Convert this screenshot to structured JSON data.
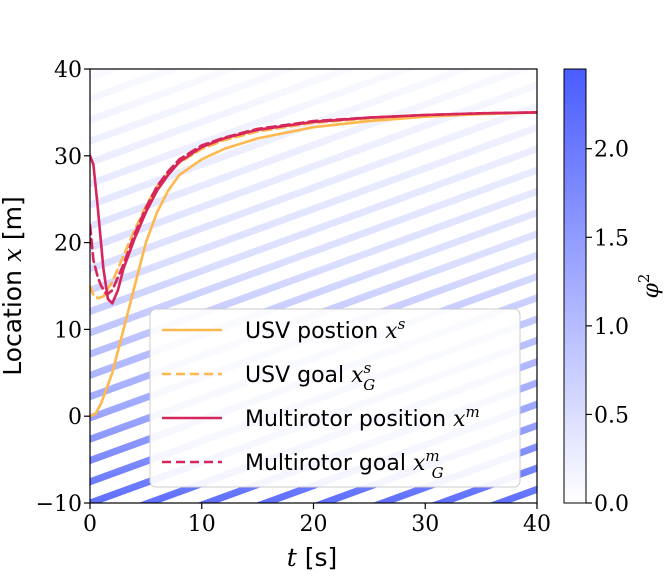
{
  "chart_data": {
    "type": "line",
    "title": "",
    "xlabel": {
      "math": "t",
      "text": " [s]"
    },
    "ylabel": {
      "text": "Location ",
      "math": "x",
      "unit": " [m]"
    },
    "xlim": [
      0,
      40
    ],
    "ylim": [
      -10,
      40
    ],
    "x_ticks": [
      0,
      10,
      20,
      30,
      40
    ],
    "x_tick_labels": [
      "0",
      "10",
      "20",
      "30",
      "40"
    ],
    "y_ticks": [
      -10,
      0,
      10,
      20,
      30,
      40
    ],
    "y_tick_labels": [
      "−10",
      "0",
      "10",
      "20",
      "30",
      "40"
    ],
    "grid": false,
    "legend_position": "lower-right",
    "background": "diagonal stripes colored by phi^2 value",
    "series": [
      {
        "name": "USV postion",
        "math": "x",
        "sup": "s",
        "sub": "",
        "color": "#ffb84d",
        "style": "solid",
        "x": [
          0,
          0.5,
          1,
          2,
          3,
          4,
          5,
          6,
          7,
          8,
          10,
          12,
          15,
          20,
          25,
          30,
          35,
          40
        ],
        "y": [
          0,
          0.3,
          1.5,
          5,
          10,
          15,
          20,
          23.5,
          26,
          27.8,
          29.6,
          30.8,
          32,
          33.3,
          34,
          34.5,
          34.8,
          35
        ]
      },
      {
        "name": "USV goal",
        "math": "x",
        "sup": "s",
        "sub": "G",
        "color": "#ffb84d",
        "style": "dashed",
        "x": [
          0,
          0.3,
          0.7,
          1.2,
          2,
          3,
          4,
          5,
          6,
          7,
          8,
          10,
          12,
          15,
          20,
          25,
          30,
          35,
          40
        ],
        "y": [
          15,
          14,
          13.6,
          13.8,
          15.5,
          18.5,
          21.5,
          24.2,
          26.5,
          28,
          29.2,
          30.8,
          31.8,
          32.8,
          33.8,
          34.3,
          34.6,
          34.8,
          35
        ]
      },
      {
        "name": "Multirotor position",
        "math": "x",
        "sup": "m",
        "sub": "",
        "color": "#d6265a",
        "style": "solid",
        "x": [
          0,
          0.3,
          0.7,
          1.2,
          1.6,
          2,
          2.5,
          3,
          4,
          5,
          6,
          7,
          8,
          10,
          12,
          15,
          20,
          25,
          30,
          35,
          40
        ],
        "y": [
          30,
          29,
          24,
          17,
          13.5,
          13,
          14.5,
          17,
          20.5,
          23.5,
          26,
          27.8,
          29.3,
          31,
          32,
          33,
          33.9,
          34.4,
          34.7,
          34.9,
          35
        ]
      },
      {
        "name": "Multirotor goal",
        "math": "x",
        "sup": "m",
        "sub": "G",
        "color": "#d6265a",
        "style": "dashed",
        "x": [
          0,
          0.3,
          0.7,
          1,
          1.5,
          2,
          3,
          4,
          5,
          6,
          7,
          8,
          10,
          12,
          15,
          20,
          25,
          30,
          35,
          40
        ],
        "y": [
          22,
          18,
          16,
          15,
          14,
          14.5,
          17.5,
          21,
          24,
          26.5,
          28.2,
          29.6,
          31.2,
          32.1,
          33.1,
          34,
          34.4,
          34.7,
          34.9,
          35
        ]
      }
    ],
    "colorbar": {
      "label_math": "φ",
      "label_sup": "2",
      "ticks": [
        0.0,
        0.5,
        1.0,
        1.5,
        2.0
      ],
      "tick_labels": [
        "0.0",
        "0.5",
        "1.0",
        "1.5",
        "2.0"
      ],
      "max": 2.45,
      "color_low": "#ffffff",
      "color_high": "#4a5cff"
    }
  }
}
